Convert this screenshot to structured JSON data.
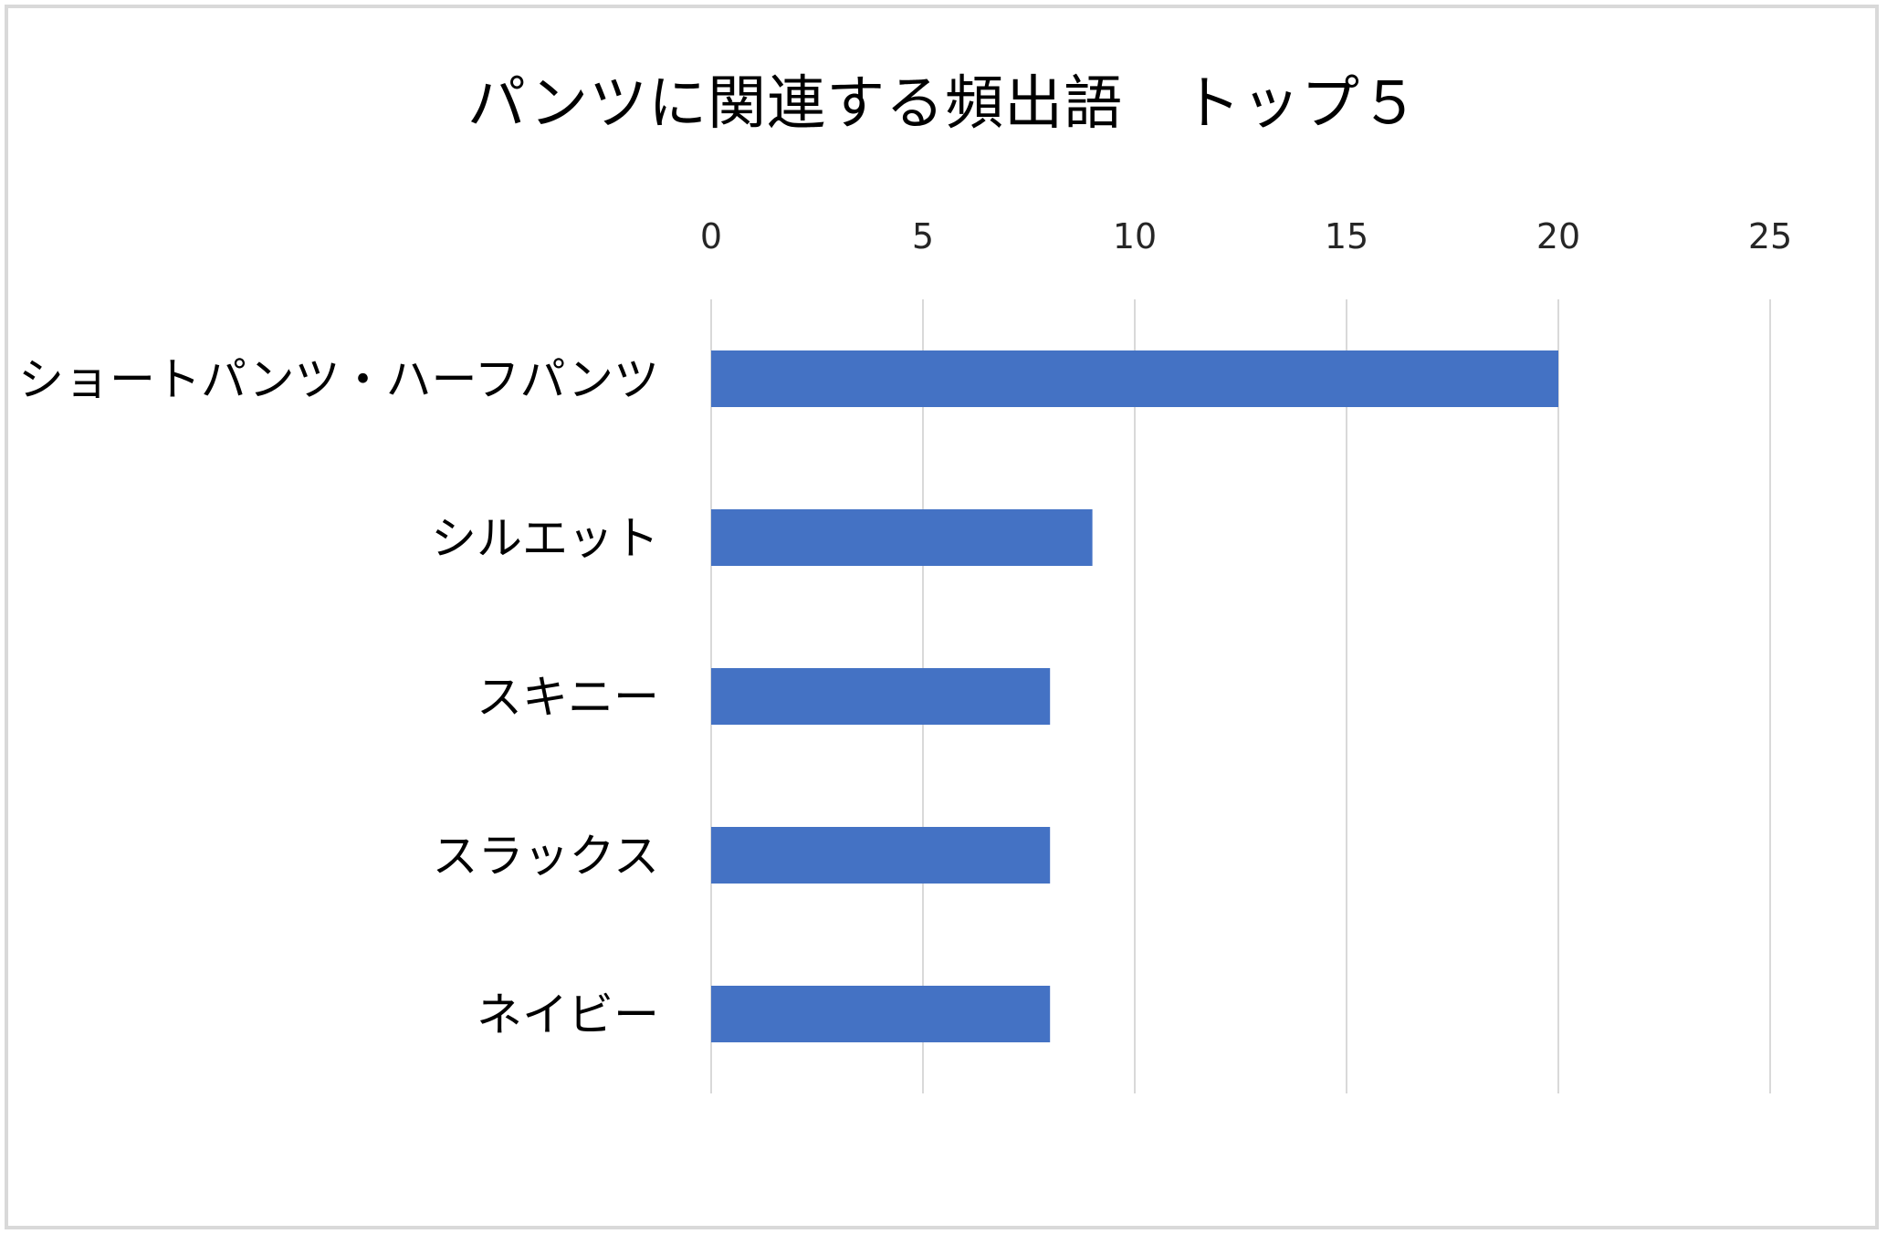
{
  "chart_data": {
    "type": "bar",
    "orientation": "horizontal",
    "title": "パンツに関連する頻出語　トップ５",
    "categories": [
      "ショートパンツ・ハーフパンツ",
      "シルエット",
      "スキニー",
      "スラックス",
      "ネイビー"
    ],
    "values": [
      20,
      9,
      8,
      8,
      8
    ],
    "xlim": [
      0,
      25
    ],
    "x_ticks": [
      "0",
      "5",
      "10",
      "15",
      "20",
      "25"
    ],
    "x_axis_position": "top",
    "grid": true,
    "legend": "none",
    "bar_color": "#4472C4",
    "gridline_color": "#D9D9D9"
  }
}
